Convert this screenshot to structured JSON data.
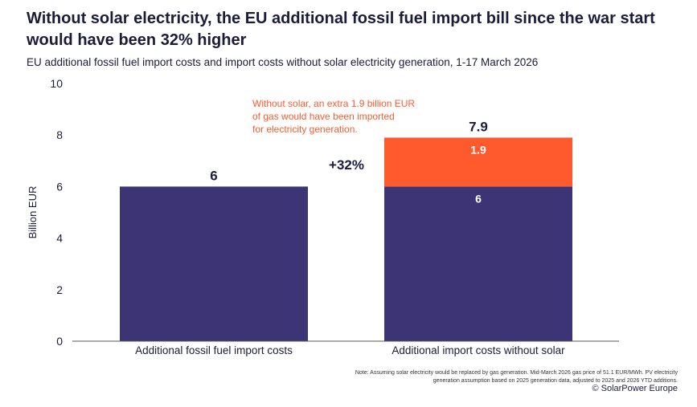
{
  "title": "Without solar electricity, the EU additional fossil fuel import bill since the war start would have been 32% higher",
  "subtitle": "EU additional fossil fuel import costs and import costs without solar electricity generation, 1-17 March 2026",
  "note_line1": "Note: Assuming solar electricity would be replaced by gas generation. Mid-March 2026 gas price of 51.1 EUR/MWh. PV electricity",
  "note_line2": "generation assumption based on 2025 generation data, adjusted to 2025 and 2026 YTD additions.",
  "credit": "© SolarPower Europe",
  "chart_data": {
    "type": "bar",
    "stacked": true,
    "categories": [
      "Additional fossil fuel import costs",
      "Additional import costs without solar"
    ],
    "series": [
      {
        "values": [
          6,
          6
        ],
        "color": "#3d3475"
      },
      {
        "values": [
          0,
          1.9
        ],
        "color": "#ff5a2d"
      }
    ],
    "totals": [
      "6",
      "7.9"
    ],
    "segment_labels": [
      [
        "6",
        ""
      ],
      [
        "6",
        "1.9"
      ]
    ],
    "ylabel": "Billion EUR",
    "ylim": [
      0,
      10
    ],
    "yticks": [
      "0",
      "2",
      "4",
      "6",
      "8",
      "10"
    ],
    "grid": false,
    "annotations": {
      "increase": "+32%",
      "callout": [
        "Without solar, an extra 1.9 billion EUR",
        "of gas would have been imported",
        "for electricity generation."
      ],
      "callout_color": "#ff5a2d"
    }
  }
}
